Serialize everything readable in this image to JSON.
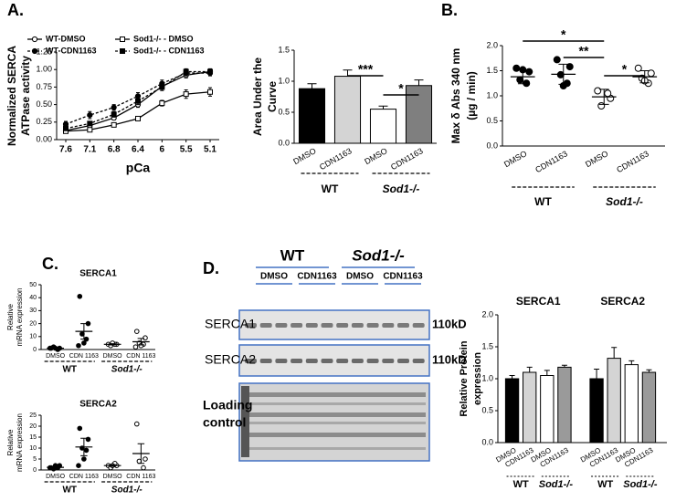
{
  "panel_labels": [
    "A.",
    "B.",
    "C.",
    "D."
  ],
  "chart_data": [
    {
      "type": "line",
      "xlabel": "pCa",
      "ylabel": [
        "Normalized SERCA",
        "ATPase activity"
      ],
      "categories": [
        "7.6",
        "7.1",
        "6.8",
        "6.4",
        "6",
        "5.5",
        "5.1"
      ],
      "ylim": [
        0,
        1.25
      ],
      "yticks": [
        {
          "value": 0,
          "label": "0.00"
        },
        {
          "value": 0.25,
          "label": "0.25"
        },
        {
          "value": 0.5,
          "label": "0.50"
        },
        {
          "value": 0.75,
          "label": "0.75"
        },
        {
          "value": 1,
          "label": "1.00"
        },
        {
          "value": 1.25,
          "label": "1.25"
        }
      ],
      "series": [
        {
          "name": "WT-DMSO",
          "color": "#000000",
          "dash": false,
          "marker": "circle",
          "filled": false,
          "values": [
            0.13,
            0.2,
            0.31,
            0.5,
            0.76,
            0.92,
            0.97
          ],
          "errors": [
            0.02,
            0.02,
            0.03,
            0.04,
            0.04,
            0.04,
            0.03
          ]
        },
        {
          "name": "WT-CDN1163",
          "color": "#000000",
          "dash": true,
          "marker": "circle",
          "filled": true,
          "values": [
            0.22,
            0.35,
            0.46,
            0.62,
            0.8,
            0.95,
            0.95
          ],
          "errors": [
            0.04,
            0.05,
            0.04,
            0.05,
            0.05,
            0.04,
            0.04
          ]
        },
        {
          "name": "Sod1-/- - DMSO",
          "color": "#000000",
          "dash": false,
          "marker": "square",
          "filled": false,
          "values": [
            0.12,
            0.14,
            0.21,
            0.3,
            0.52,
            0.65,
            0.68
          ],
          "errors": [
            0.02,
            0.02,
            0.02,
            0.03,
            0.04,
            0.06,
            0.06
          ]
        },
        {
          "name": "Sod1-/- - CDN1163",
          "color": "#000000",
          "dash": true,
          "marker": "square",
          "filled": true,
          "values": [
            0.16,
            0.23,
            0.36,
            0.55,
            0.75,
            0.97,
            0.97
          ],
          "errors": [
            0.03,
            0.03,
            0.04,
            0.05,
            0.05,
            0.04,
            0.04
          ]
        }
      ]
    },
    {
      "type": "bar",
      "ylabel": [
        "Area Under the",
        "Curve"
      ],
      "categories": [
        "DMSO",
        "CDN1163",
        "DMSO",
        "CDN1163"
      ],
      "groups": [
        "WT",
        "Sod1-/-"
      ],
      "colors": [
        "#000000",
        "#d4d4d4",
        "#ffffff",
        "#7f7f7f"
      ],
      "values": [
        0.88,
        1.08,
        0.55,
        0.93
      ],
      "errors": [
        0.08,
        0.1,
        0.05,
        0.09
      ],
      "ylim": [
        0,
        1.5
      ],
      "yticks": [
        {
          "value": 0,
          "label": "0.0"
        },
        {
          "value": 0.5,
          "label": "0.5"
        },
        {
          "value": 1,
          "label": "1.0"
        },
        {
          "value": 1.5,
          "label": "1.5"
        }
      ],
      "annotations": [
        "***",
        "*"
      ]
    },
    {
      "type": "dot",
      "ylabel": [
        "Max δ Abs 340 nm",
        "(µg / min)"
      ],
      "categories": [
        "DMSO",
        "CDN1163",
        "DMSO",
        "CDN1163"
      ],
      "groups": [
        "WT",
        "Sod1-/-"
      ],
      "filled": [
        true,
        true,
        false,
        false
      ],
      "points": [
        [
          1.55,
          1.48,
          1.32,
          1.25,
          1.52
        ],
        [
          1.72,
          1.58,
          1.42,
          1.25,
          1.2
        ],
        [
          1.1,
          0.95,
          0.8,
          1.05
        ],
        [
          1.55,
          1.45,
          1.35,
          1.25,
          1.3
        ]
      ],
      "means": [
        1.38,
        1.43,
        0.98,
        1.38
      ],
      "errors": [
        0.14,
        0.2,
        0.15,
        0.12
      ],
      "ylim": [
        0,
        2
      ],
      "yticks": [
        {
          "value": 0,
          "label": "0.0"
        },
        {
          "value": 0.5,
          "label": "0.5"
        },
        {
          "value": 1,
          "label": "1.0"
        },
        {
          "value": 1.5,
          "label": "1.5"
        },
        {
          "value": 2,
          "label": "2.0"
        }
      ],
      "annotations": [
        "*",
        "**",
        "*"
      ]
    },
    {
      "type": "dot",
      "title": "SERCA1",
      "ylabel": [
        "Relative",
        "mRNA expression"
      ],
      "categories": [
        "DMSO",
        "CDN 1163",
        "DMSO",
        "CDN 1163"
      ],
      "groups": [
        "WT",
        "Sod1-/-"
      ],
      "filled": [
        true,
        true,
        false,
        false
      ],
      "points": [
        [
          1,
          1,
          2,
          0,
          1,
          1
        ],
        [
          41,
          20,
          12,
          8,
          5,
          3
        ],
        [
          4,
          4,
          3,
          4,
          5
        ],
        [
          14,
          9,
          5,
          4,
          3,
          2
        ]
      ],
      "means": [
        1,
        14,
        4,
        6
      ],
      "errors": [
        0.5,
        6,
        0.5,
        2.5
      ],
      "ylim": [
        0,
        50
      ],
      "yticks": [
        0,
        10,
        20,
        30,
        40,
        50
      ]
    },
    {
      "type": "dot",
      "title": "SERCA2",
      "ylabel": [
        "Relative",
        "mRNA expression"
      ],
      "categories": [
        "DMSO",
        "CDN 1163",
        "DMSO",
        "CDN 1163"
      ],
      "groups": [
        "WT",
        "Sod1-/-"
      ],
      "filled": [
        true,
        true,
        false,
        false
      ],
      "points": [
        [
          1,
          2,
          0.5,
          1,
          2,
          1
        ],
        [
          19,
          14,
          10,
          9,
          5,
          2
        ],
        [
          2,
          2,
          1,
          3,
          2
        ],
        [
          21,
          5,
          4,
          1
        ]
      ],
      "means": [
        1.2,
        10.5,
        2,
        7.5
      ],
      "errors": [
        0.3,
        4,
        0.4,
        4.5
      ],
      "ylim": [
        0,
        25
      ],
      "yticks": [
        0,
        5,
        10,
        15,
        20,
        25
      ]
    },
    {
      "type": "grouped_bar",
      "ylabel": [
        "Relative Protein",
        "expression"
      ],
      "panels": [
        "SERCA1",
        "SERCA2"
      ],
      "categories": [
        "DMSO",
        "CDN1163",
        "DMSO",
        "CDN1163"
      ],
      "groups": [
        "WT",
        "Sod1-/-"
      ],
      "colors": [
        "#000000",
        "#d4d4d4",
        "#ffffff",
        "#9a9a9a"
      ],
      "values": [
        [
          1.0,
          1.1,
          1.05,
          1.18
        ],
        [
          1.0,
          1.32,
          1.22,
          1.1
        ]
      ],
      "errors": [
        [
          0.05,
          0.08,
          0.08,
          0.03
        ],
        [
          0.15,
          0.17,
          0.06,
          0.04
        ]
      ],
      "ylim": [
        0,
        2
      ],
      "yticks": [
        {
          "value": 0,
          "label": "0.0"
        },
        {
          "value": 0.5,
          "label": "0.5"
        },
        {
          "value": 1,
          "label": "1.0"
        },
        {
          "value": 1.5,
          "label": "1.5"
        },
        {
          "value": 2,
          "label": "2.0"
        }
      ]
    }
  ],
  "blot": {
    "groups": [
      "WT",
      "Sod1-/-"
    ],
    "conditions": [
      "DMSO",
      "CDN1163",
      "DMSO",
      "CDN1163"
    ],
    "rows": [
      "SERCA1",
      "SERCA2"
    ],
    "loading": [
      "Loading",
      "control"
    ],
    "size": "110kD"
  }
}
